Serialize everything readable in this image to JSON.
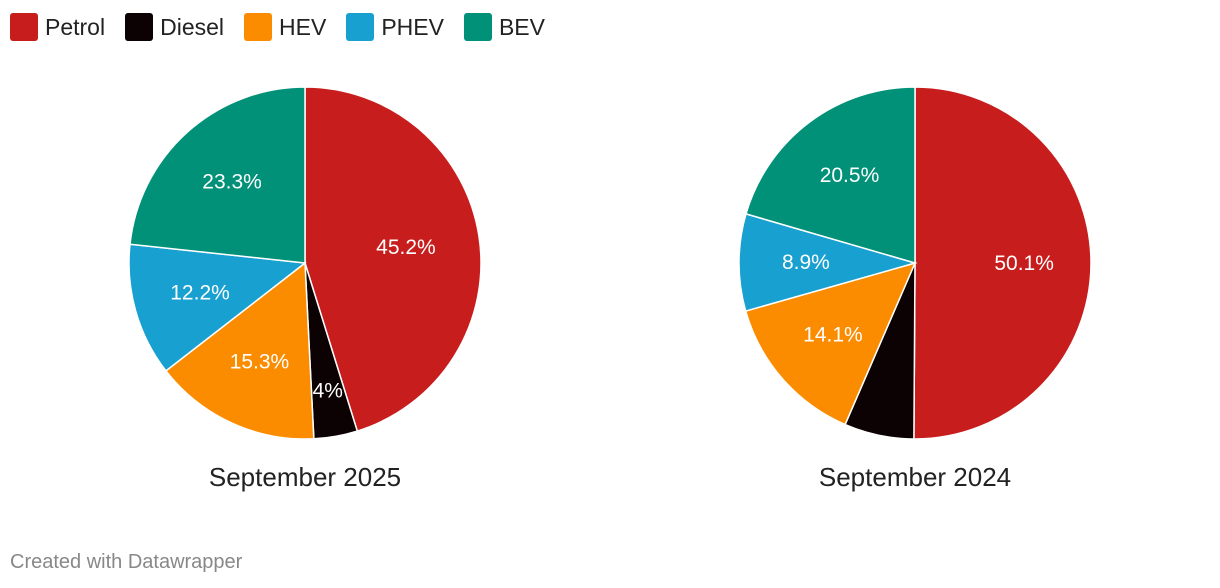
{
  "legend": [
    {
      "label": "Petrol",
      "color": "#c81d1d"
    },
    {
      "label": "Diesel",
      "color": "#0d0203"
    },
    {
      "label": "HEV",
      "color": "#fb8c00"
    },
    {
      "label": "PHEV",
      "color": "#18a0d0"
    },
    {
      "label": "BEV",
      "color": "#009178"
    }
  ],
  "footer": "Created with Datawrapper",
  "chart_data": [
    {
      "type": "pie",
      "title": "September 2025",
      "categories": [
        "Petrol",
        "Diesel",
        "HEV",
        "PHEV",
        "BEV"
      ],
      "values": [
        45.2,
        4,
        15.3,
        12.2,
        23.3
      ],
      "labels": [
        "45.2%",
        "4%",
        "15.3%",
        "12.2%",
        "23.3%"
      ],
      "colors": [
        "#c81d1d",
        "#0d0203",
        "#fb8c00",
        "#18a0d0",
        "#009178"
      ]
    },
    {
      "type": "pie",
      "title": "September 2024",
      "categories": [
        "Petrol",
        "Diesel",
        "HEV",
        "PHEV",
        "BEV"
      ],
      "values": [
        50.1,
        6.4,
        14.1,
        8.9,
        20.5
      ],
      "labels": [
        "50.1%",
        "",
        "14.1%",
        "8.9%",
        "20.5%"
      ],
      "colors": [
        "#c81d1d",
        "#0d0203",
        "#fb8c00",
        "#18a0d0",
        "#009178"
      ]
    }
  ]
}
